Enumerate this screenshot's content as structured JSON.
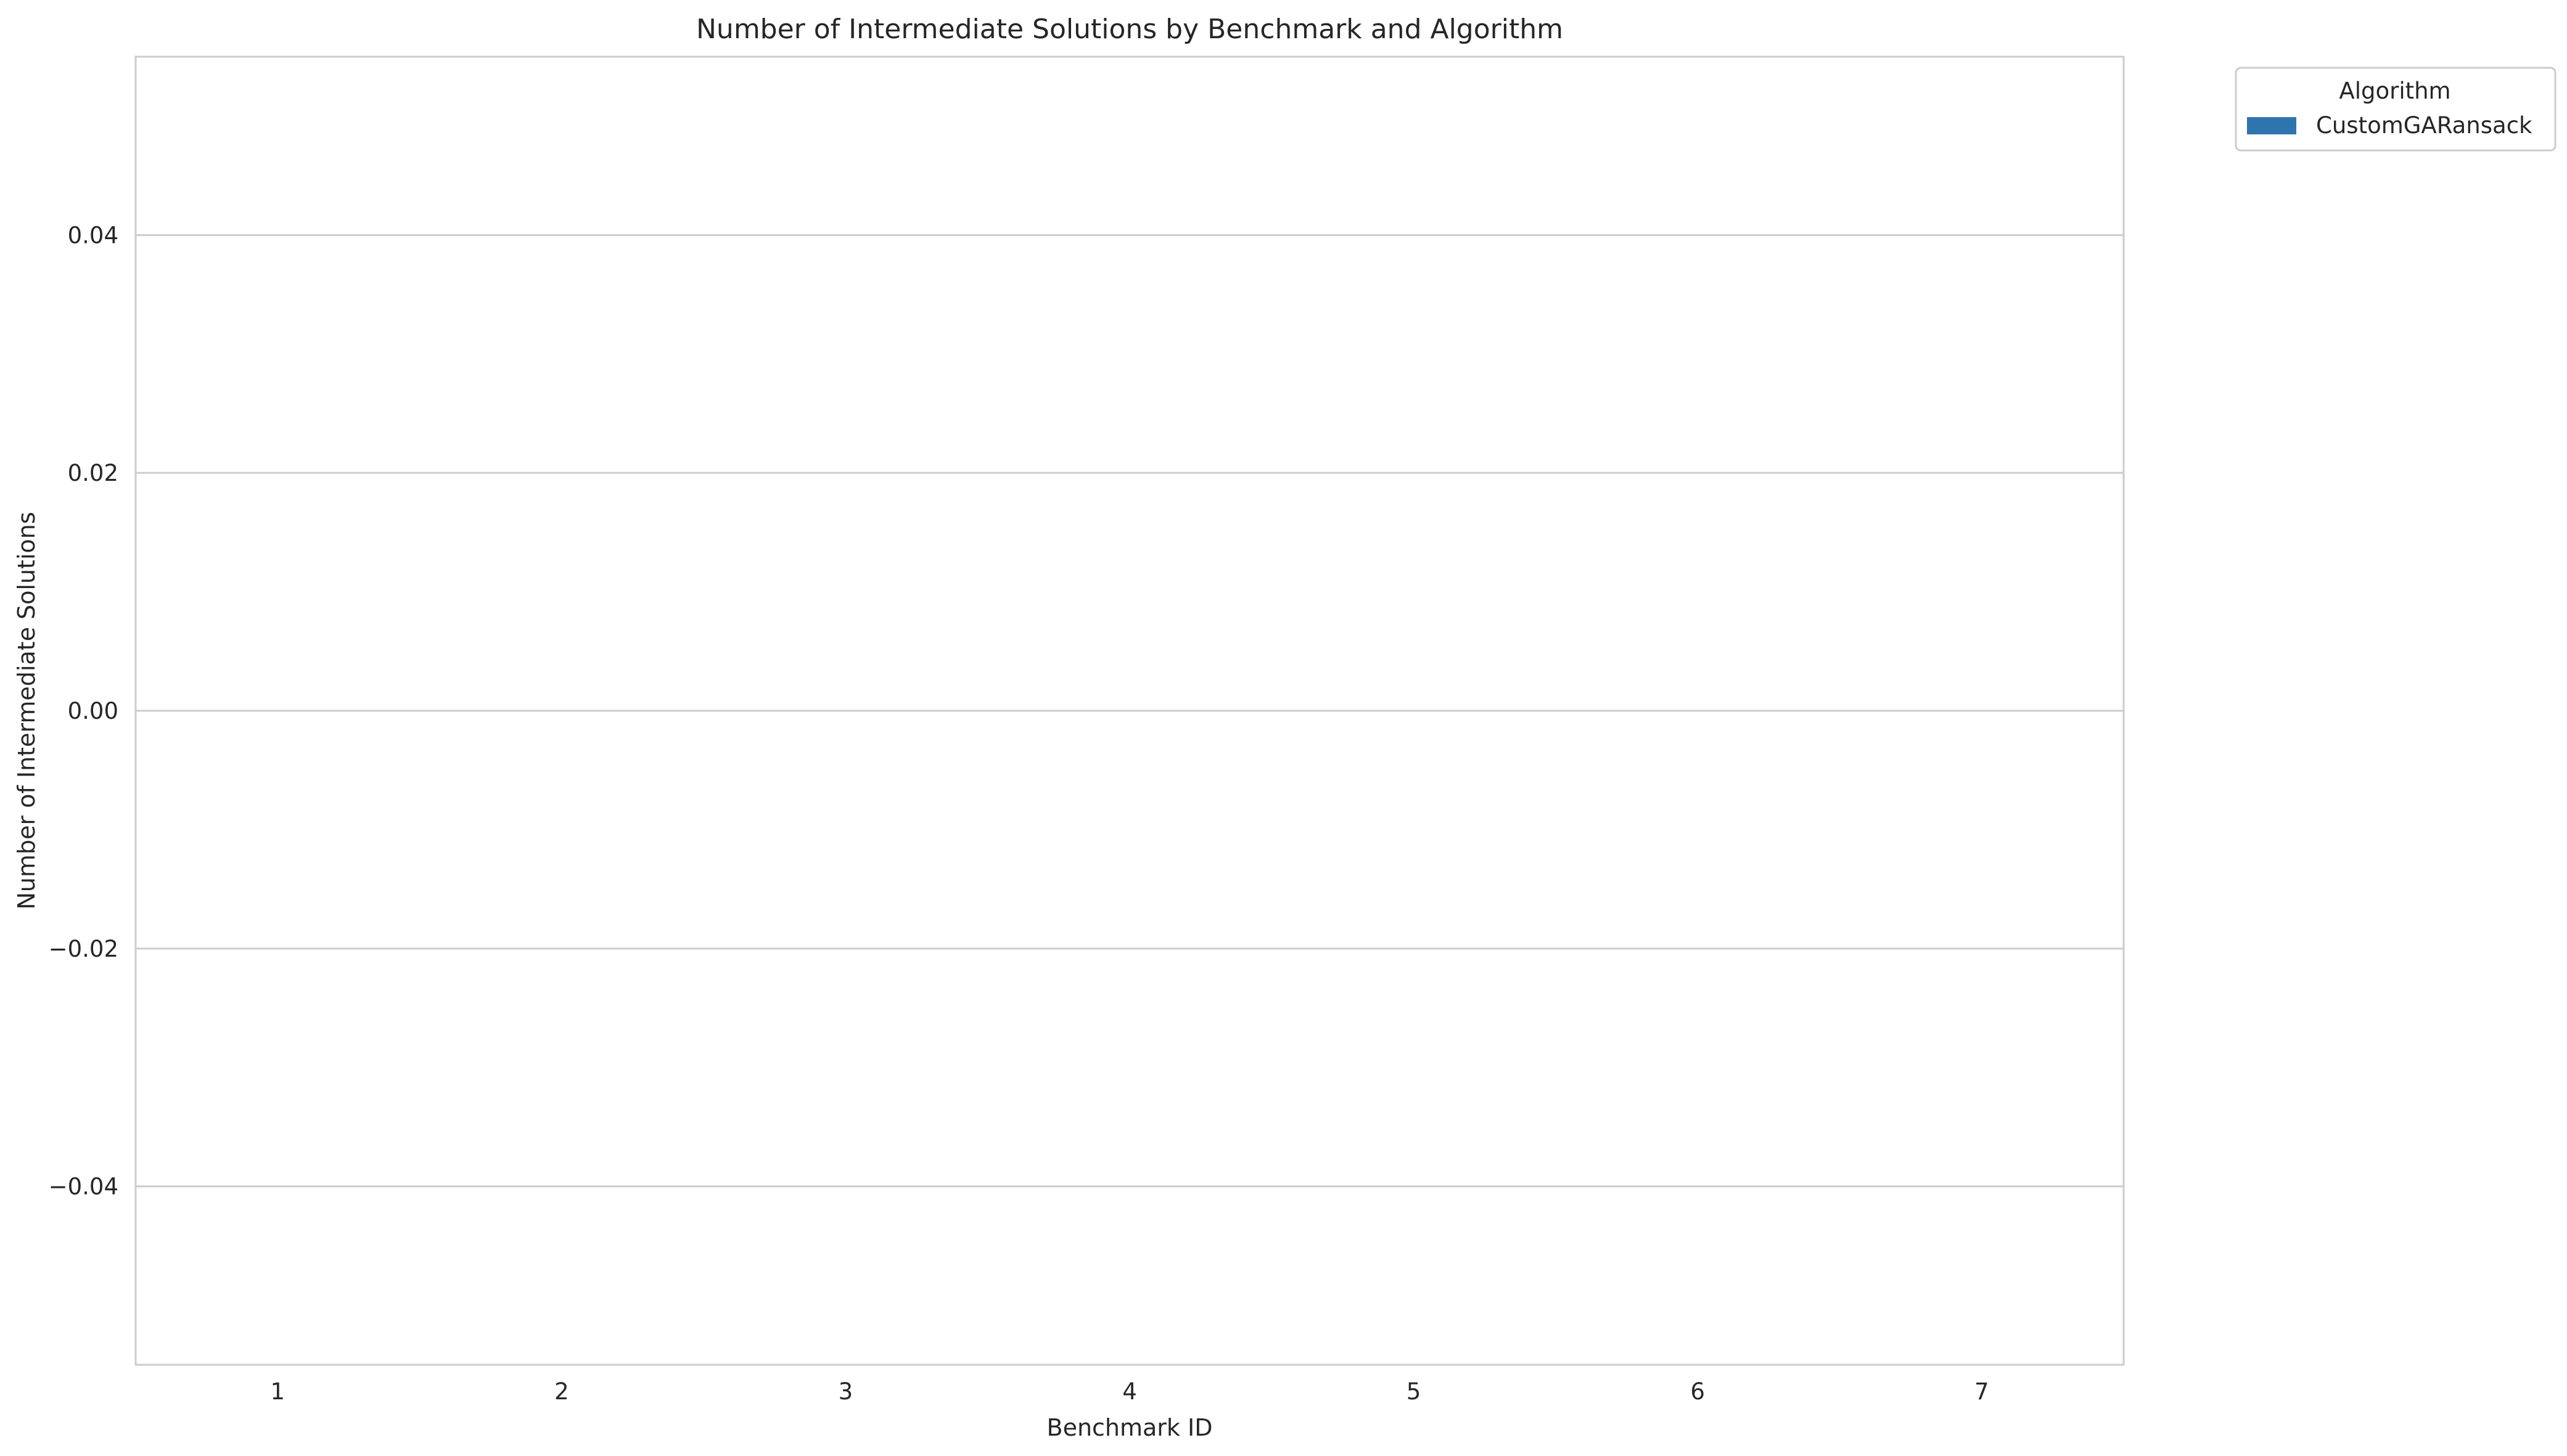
{
  "chart_data": {
    "type": "bar",
    "title": "Number of Intermediate Solutions by Benchmark and Algorithm",
    "xlabel": "Benchmark ID",
    "ylabel": "Number of Intermediate Solutions",
    "categories": [
      "1",
      "2",
      "3",
      "4",
      "5",
      "6",
      "7"
    ],
    "series": [
      {
        "name": "CustomGARansack",
        "values": [
          0,
          0,
          0,
          0,
          0,
          0,
          0
        ],
        "color": "#2e75b0"
      }
    ],
    "ylim": [
      -0.055,
      0.055
    ],
    "yticks": [
      -0.04,
      -0.02,
      0.0,
      0.02,
      0.04
    ],
    "ytick_labels": [
      "−0.04",
      "−0.02",
      "0.00",
      "0.02",
      "0.04"
    ],
    "grid": true,
    "legend": {
      "title": "Algorithm",
      "placement": "outside top-right"
    }
  }
}
